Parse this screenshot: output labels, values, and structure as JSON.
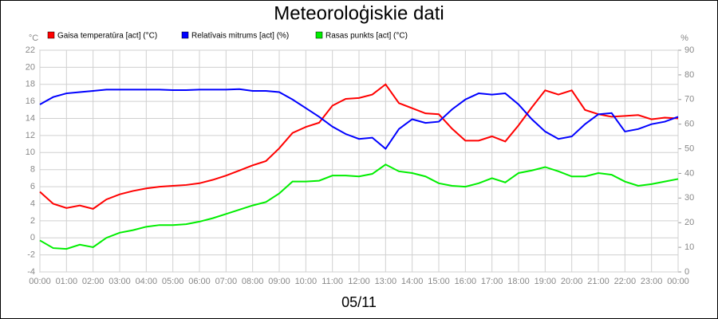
{
  "chart_data": {
    "type": "line",
    "title": "Meteoroloģiskie dati",
    "xlabel": "05/11",
    "ylabel": "°C",
    "y2label": "%",
    "x": [
      0,
      0.5,
      1,
      1.5,
      2,
      2.5,
      3,
      3.5,
      4,
      4.5,
      5,
      5.5,
      6,
      6.5,
      7,
      7.5,
      8,
      8.5,
      9,
      9.5,
      10,
      10.5,
      11,
      11.5,
      12,
      12.5,
      13,
      13.5,
      14,
      14.5,
      15,
      15.5,
      16,
      16.5,
      17,
      17.5,
      18,
      18.5,
      19,
      19.5,
      20,
      20.5,
      21,
      21.5,
      22,
      22.5,
      23,
      23.5,
      24
    ],
    "xlim": [
      0,
      24
    ],
    "xticks": [
      {
        "value": 0,
        "label": "00:00"
      },
      {
        "value": 1,
        "label": "01:00"
      },
      {
        "value": 2,
        "label": "02:00"
      },
      {
        "value": 3,
        "label": "03:00"
      },
      {
        "value": 4,
        "label": "04:00"
      },
      {
        "value": 5,
        "label": "05:00"
      },
      {
        "value": 6,
        "label": "06:00"
      },
      {
        "value": 7,
        "label": "07:00"
      },
      {
        "value": 8,
        "label": "08:00"
      },
      {
        "value": 9,
        "label": "09:00"
      },
      {
        "value": 10,
        "label": "10:00"
      },
      {
        "value": 11,
        "label": "11:00"
      },
      {
        "value": 12,
        "label": "12:00"
      },
      {
        "value": 13,
        "label": "13:00"
      },
      {
        "value": 14,
        "label": "14:00"
      },
      {
        "value": 15,
        "label": "15:00"
      },
      {
        "value": 16,
        "label": "16:00"
      },
      {
        "value": 17,
        "label": "17:00"
      },
      {
        "value": 18,
        "label": "18:00"
      },
      {
        "value": 19,
        "label": "19:00"
      },
      {
        "value": 20,
        "label": "20:00"
      },
      {
        "value": 21,
        "label": "21:00"
      },
      {
        "value": 22,
        "label": "22:00"
      },
      {
        "value": 23,
        "label": "23:00"
      },
      {
        "value": 24,
        "label": "00:00"
      }
    ],
    "ylim": [
      -4,
      22
    ],
    "yticks": [
      -4,
      -2,
      0,
      2,
      4,
      6,
      8,
      10,
      12,
      14,
      16,
      18,
      20,
      22
    ],
    "y2lim": [
      0,
      90
    ],
    "y2ticks": [
      0,
      10,
      20,
      30,
      40,
      50,
      60,
      70,
      80,
      90
    ],
    "grid": true,
    "series": [
      {
        "name": "Gaisa temperatūra [act] (°C)",
        "color": "#ff0000",
        "values": [
          5.4,
          4.0,
          3.5,
          3.8,
          3.4,
          4.5,
          5.1,
          5.5,
          5.8,
          6.0,
          6.1,
          6.2,
          6.4,
          6.8,
          7.3,
          7.9,
          8.5,
          9.0,
          10.5,
          12.3,
          13.0,
          13.5,
          15.5,
          16.3,
          16.4,
          16.8,
          18.0,
          15.8,
          15.2,
          14.6,
          14.5,
          12.8,
          11.4,
          11.4,
          11.9,
          11.3,
          13.2,
          15.3,
          17.3,
          16.8,
          17.3,
          15.0,
          14.5,
          14.2,
          14.3,
          14.4,
          13.9,
          14.1,
          14.0
        ]
      },
      {
        "name": "Relatīvais mitrums [act] (%)",
        "color": "#0000ff",
        "axis": "y2",
        "values": [
          68,
          71,
          72.5,
          73,
          73.5,
          74,
          74,
          74,
          74,
          74,
          73.8,
          73.8,
          74,
          74,
          74,
          74.2,
          73.5,
          73.5,
          73,
          70,
          66.5,
          63,
          59,
          56,
          54,
          54.5,
          50,
          58,
          62,
          60.5,
          61,
          66,
          70,
          72.5,
          72,
          72.5,
          68,
          62,
          57,
          54,
          55,
          60,
          64,
          64.5,
          57,
          58,
          60,
          61,
          63
        ]
      },
      {
        "name": "Rasas punkts [act] (°C)",
        "color": "#00ee00",
        "values": [
          -0.3,
          -1.2,
          -1.3,
          -0.8,
          -1.1,
          0,
          0.6,
          0.9,
          1.3,
          1.5,
          1.5,
          1.6,
          1.9,
          2.3,
          2.8,
          3.3,
          3.8,
          4.2,
          5.2,
          6.6,
          6.6,
          6.7,
          7.3,
          7.3,
          7.2,
          7.5,
          8.6,
          7.8,
          7.6,
          7.2,
          6.4,
          6.1,
          6.0,
          6.4,
          7.0,
          6.5,
          7.6,
          7.9,
          8.3,
          7.8,
          7.2,
          7.2,
          7.6,
          7.4,
          6.6,
          6.1,
          6.3,
          6.6,
          6.9
        ]
      }
    ]
  }
}
